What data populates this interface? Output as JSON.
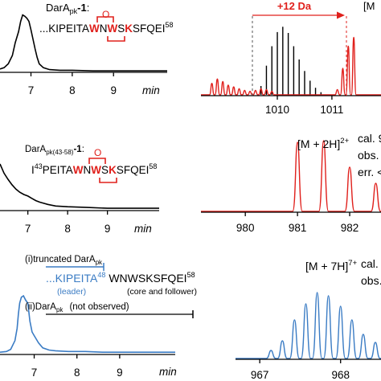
{
  "colors": {
    "black": "#000000",
    "red": "#e0201c",
    "blue": "#3b7cc4",
    "gray": "#555555"
  },
  "chart_data": [
    {
      "type": "line",
      "panel": "hplc-top",
      "x_ticks": [
        "7",
        "8",
        "9"
      ],
      "x_unit": "min",
      "xlim": [
        6.25,
        10.3
      ],
      "x": [
        6.25,
        6.35,
        6.45,
        6.55,
        6.62,
        6.7,
        6.75,
        6.8,
        6.85,
        6.9,
        6.95,
        7.0,
        7.05,
        7.1,
        7.15,
        7.2,
        7.3,
        7.45,
        7.7,
        8.0,
        8.5,
        9.0,
        9.5,
        10.0,
        10.3
      ],
      "y": [
        0.04,
        0.06,
        0.12,
        0.25,
        0.45,
        0.62,
        0.78,
        0.88,
        0.86,
        0.83,
        0.78,
        0.65,
        0.5,
        0.35,
        0.22,
        0.12,
        0.06,
        0.03,
        0.02,
        0.02,
        0.01,
        0.01,
        0.01,
        0.01,
        0.01
      ],
      "annotation": {
        "name": "DarA",
        "name_sub": "pk",
        "name_suffix": "-1",
        "colon": ":",
        "seq_prefix": "...KIPEITA",
        "seq_w1": "W",
        "seq_n": "N",
        "seq_w2": "W",
        "seq_s": "S",
        "seq_k": "K",
        "seq_suffix": "SFQEI",
        "seq_end": "58",
        "bridge_atom": "O"
      }
    },
    {
      "type": "bar",
      "panel": "ms-top",
      "x_ticks": [
        "1010",
        "1011"
      ],
      "xlim": [
        1008.6,
        1011.9
      ],
      "annotation": "+12 Da",
      "label": "[M",
      "black_peaks_x": [
        1009.7,
        1009.8,
        1009.9,
        1010.0,
        1010.1,
        1010.2,
        1010.3,
        1010.4,
        1010.5,
        1010.6,
        1010.7,
        1010.8
      ],
      "black_peaks_y": [
        0.1,
        0.33,
        0.55,
        0.71,
        0.77,
        0.7,
        0.55,
        0.4,
        0.27,
        0.16,
        0.08,
        0.03
      ],
      "red_peaks_x": [
        1008.8,
        1008.9,
        1009.0,
        1009.1,
        1009.2,
        1009.3,
        1009.4,
        1009.5,
        1009.6,
        1009.7,
        1009.8,
        1009.9,
        1011.1,
        1011.2,
        1011.3,
        1011.4
      ],
      "red_peaks_y": [
        0.13,
        0.18,
        0.15,
        0.11,
        0.09,
        0.07,
        0.05,
        0.04,
        0.05,
        0.07,
        0.06,
        0.04,
        0.06,
        0.3,
        0.55,
        0.65
      ]
    },
    {
      "type": "line",
      "panel": "hplc-middle",
      "x_ticks": [
        "7",
        "8",
        "9"
      ],
      "x_unit": "min",
      "xlim": [
        6.3,
        10.3
      ],
      "x": [
        6.3,
        6.4,
        6.5,
        6.6,
        6.7,
        6.8,
        6.9,
        7.0,
        7.1,
        7.2,
        7.3,
        7.5,
        7.7,
        8.0,
        8.5,
        9.0,
        9.5,
        10.0,
        10.3
      ],
      "y": [
        0.6,
        0.48,
        0.4,
        0.33,
        0.27,
        0.23,
        0.2,
        0.18,
        0.15,
        0.12,
        0.1,
        0.07,
        0.05,
        0.04,
        0.03,
        0.02,
        0.02,
        0.02,
        0.02
      ],
      "annotation": {
        "name": "DarA",
        "name_sub": "pk(43-58)",
        "name_suffix": "-1",
        "colon": ":",
        "seq_start": "43",
        "seq_prefix_letter": "I",
        "seq_prefix": "PEITA",
        "seq_w1": "W",
        "seq_n": "N",
        "seq_w2": "W",
        "seq_s": "S",
        "seq_k": "K",
        "seq_suffix": "SFQEI",
        "seq_end": "58",
        "bridge_atom": "O"
      }
    },
    {
      "type": "bar",
      "panel": "ms-middle",
      "x_ticks": [
        "980",
        "981",
        "982"
      ],
      "xlim": [
        979.15,
        982.6
      ],
      "label": "[M + 2H]",
      "label_charge": "2+",
      "peaks_x": [
        981.0,
        981.5,
        982.0,
        982.5
      ],
      "peaks_y": [
        0.86,
        0.88,
        0.55,
        0.35
      ],
      "info_lines": [
        "cal. 9",
        "obs.",
        "err. <"
      ]
    },
    {
      "type": "line",
      "panel": "hplc-bottom",
      "x_ticks": [
        "7",
        "8",
        "9"
      ],
      "x_unit": "min",
      "xlim": [
        6.2,
        10.3
      ],
      "x": [
        6.2,
        6.35,
        6.45,
        6.55,
        6.6,
        6.63,
        6.66,
        6.7,
        6.75,
        6.8,
        6.85,
        6.9,
        6.95,
        7.0,
        7.05,
        7.1,
        7.2,
        7.35,
        7.5,
        7.8,
        8.2,
        8.6,
        9.0,
        9.5,
        10.3
      ],
      "y": [
        0.02,
        0.03,
        0.06,
        0.18,
        0.35,
        0.55,
        0.7,
        0.78,
        0.8,
        0.74,
        0.7,
        0.45,
        0.3,
        0.25,
        0.2,
        0.15,
        0.08,
        0.05,
        0.04,
        0.03,
        0.03,
        0.02,
        0.02,
        0.02,
        0.02
      ],
      "annotation": {
        "item1_label": "(i)",
        "item1_text": "truncated DarA",
        "item1_sub": "pk",
        "seq_prefix": "...KIPEITA",
        "seq_pos": "48",
        "seq_rest": "WNWSKSFQEI",
        "seq_end": "58",
        "leader_label": "(leader)",
        "core_label": "(core and follower)",
        "item2_label": "(ii)",
        "item2_text": "DarA",
        "item2_sub": "pk",
        "item2_note": "(not observed)"
      }
    },
    {
      "type": "line",
      "panel": "ms-bottom",
      "x_ticks": [
        "967",
        "968"
      ],
      "xlim": [
        966.7,
        968.5
      ],
      "label": "[M + 7H]",
      "label_charge": "7+",
      "info_lines": [
        "cal.",
        "obs."
      ],
      "peaks_x": [
        967.14,
        967.28,
        967.43,
        967.57,
        967.71,
        967.85,
        968.0,
        968.14,
        968.28,
        968.43
      ],
      "peaks_y": [
        0.1,
        0.22,
        0.48,
        0.68,
        0.82,
        0.78,
        0.65,
        0.48,
        0.3,
        0.2
      ]
    }
  ]
}
